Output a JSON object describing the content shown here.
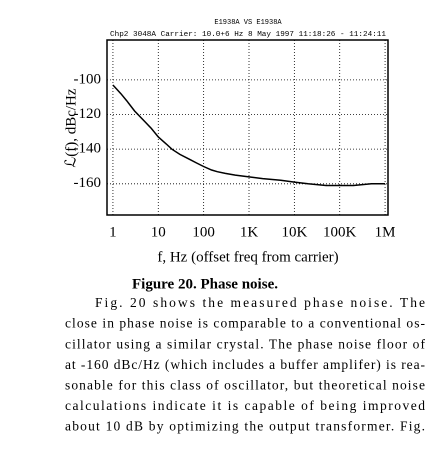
{
  "chart_data": {
    "type": "line",
    "title": "E1938A VS E1938A",
    "subtitle": "Chp2 3048A   Carrier: 10.0+6 Hz        8 May 1997   11:18:26 - 11:24:11",
    "xlabel": "f, Hz (offset freq from carrier)",
    "ylabel": "ℒ(f), dBc/Hz",
    "x": [
      1,
      1.5,
      2,
      3,
      5,
      7,
      10,
      15,
      20,
      30,
      50,
      70,
      100,
      150,
      200,
      300,
      500,
      1000,
      2000,
      5000,
      10000,
      20000,
      50000,
      100000,
      200000,
      500000,
      1000000
    ],
    "series": [
      {
        "color": "#000000",
        "values": [
          -103,
          -108,
          -112,
          -118,
          -124,
          -128,
          -133,
          -137,
          -140,
          -143,
          -146,
          -148,
          -150,
          -152,
          -153,
          -154,
          -155,
          -156,
          -157,
          -158,
          -159,
          -160,
          -161,
          -161,
          -161,
          -160,
          -160
        ]
      }
    ],
    "xscale": "log",
    "xlim": [
      0.74,
      1160000
    ],
    "ylim": [
      -178,
      -77
    ],
    "xticks": [
      1,
      10,
      100,
      {
        "value": 1000,
        "label": "1K"
      },
      {
        "value": 10000,
        "label": "10K"
      },
      {
        "value": 100000,
        "label": "100K"
      },
      {
        "value": 1000000,
        "label": "1M"
      }
    ],
    "yticks": [
      -100,
      -120,
      -140,
      -160
    ],
    "grid": true
  },
  "caption": "Figure 20.  Phase noise.",
  "paragraph": [
    "Fig. 20 shows the measured phase noise.  The",
    "close in phase noise is comparable to a conventional os-",
    "cillator using a similar crystal.  The phase noise floor of",
    "at -160 dBc/Hz (which includes a buffer amplifer) is rea-",
    "sonable for this class of oscillator, but theoretical noise",
    "calculations indicate it is capable of being improved",
    "about 10 dB by optimizing the output transformer.  Fig."
  ]
}
